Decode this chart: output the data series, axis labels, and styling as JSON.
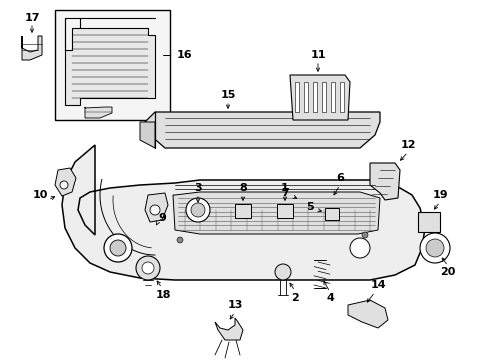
{
  "figsize": [
    4.89,
    3.6
  ],
  "dpi": 100,
  "bg": "#ffffff",
  "lw_main": 1.0,
  "lw_thin": 0.5,
  "font_label": 8,
  "font_small": 6
}
